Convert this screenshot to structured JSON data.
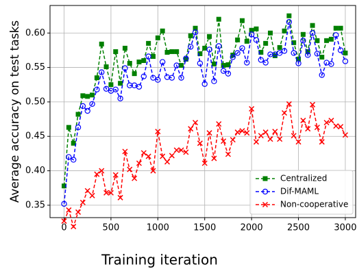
{
  "chart_data": {
    "type": "line",
    "xlabel": "Training iteration",
    "ylabel": "Average accuracy on test tasks",
    "x": [
      0,
      50,
      100,
      150,
      200,
      250,
      300,
      350,
      400,
      450,
      500,
      550,
      600,
      650,
      700,
      750,
      800,
      850,
      900,
      950,
      1000,
      1050,
      1100,
      1150,
      1200,
      1250,
      1300,
      1350,
      1400,
      1450,
      1500,
      1550,
      1600,
      1650,
      1700,
      1750,
      1800,
      1850,
      1900,
      1950,
      2000,
      2050,
      2100,
      2150,
      2200,
      2250,
      2300,
      2350,
      2400,
      2450,
      2500,
      2550,
      2600,
      2650,
      2700,
      2750,
      2800,
      2850,
      2900,
      2950,
      3000
    ],
    "series": [
      {
        "name": "Centralized",
        "color": "#008000",
        "marker": "square",
        "values": [
          0.378,
          0.463,
          0.44,
          0.482,
          0.509,
          0.508,
          0.51,
          0.535,
          0.584,
          0.551,
          0.525,
          0.573,
          0.527,
          0.578,
          0.556,
          0.541,
          0.558,
          0.56,
          0.585,
          0.566,
          0.593,
          0.603,
          0.572,
          0.573,
          0.573,
          0.553,
          0.562,
          0.596,
          0.607,
          0.57,
          0.578,
          0.595,
          0.555,
          0.62,
          0.553,
          0.554,
          0.568,
          0.59,
          0.618,
          0.588,
          0.604,
          0.606,
          0.572,
          0.585,
          0.6,
          0.567,
          0.579,
          0.603,
          0.625,
          0.586,
          0.562,
          0.598,
          0.573,
          0.611,
          0.589,
          0.565,
          0.589,
          0.591,
          0.607,
          0.607,
          0.571
        ]
      },
      {
        "name": "Dif-MAML",
        "color": "#0000ff",
        "marker": "circle",
        "values": [
          0.352,
          0.42,
          0.416,
          0.463,
          0.494,
          0.487,
          0.497,
          0.518,
          0.543,
          0.519,
          0.516,
          0.518,
          0.505,
          0.549,
          0.524,
          0.524,
          0.522,
          0.537,
          0.566,
          0.535,
          0.532,
          0.558,
          0.536,
          0.535,
          0.553,
          0.535,
          0.563,
          0.58,
          0.601,
          0.556,
          0.526,
          0.576,
          0.53,
          0.581,
          0.545,
          0.541,
          0.565,
          0.571,
          0.578,
          0.557,
          0.598,
          0.59,
          0.561,
          0.557,
          0.569,
          0.569,
          0.571,
          0.574,
          0.616,
          0.571,
          0.556,
          0.589,
          0.568,
          0.6,
          0.57,
          0.539,
          0.557,
          0.555,
          0.597,
          0.575,
          0.559
        ]
      },
      {
        "name": "Non-cooperative",
        "color": "#ff0000",
        "marker": "x",
        "values": [
          0.327,
          0.343,
          0.319,
          0.34,
          0.354,
          0.371,
          0.364,
          0.395,
          0.4,
          0.368,
          0.368,
          0.394,
          0.361,
          0.428,
          0.402,
          0.389,
          0.411,
          0.426,
          0.421,
          0.4,
          0.457,
          0.421,
          0.413,
          0.422,
          0.43,
          0.43,
          0.427,
          0.461,
          0.47,
          0.44,
          0.411,
          0.455,
          0.418,
          0.468,
          0.443,
          0.424,
          0.445,
          0.456,
          0.458,
          0.455,
          0.49,
          0.442,
          0.451,
          0.456,
          0.446,
          0.457,
          0.446,
          0.484,
          0.497,
          0.451,
          0.442,
          0.473,
          0.461,
          0.496,
          0.463,
          0.442,
          0.47,
          0.473,
          0.465,
          0.464,
          0.452
        ]
      }
    ],
    "xlim": [
      -150,
      3110
    ],
    "ylim": [
      0.332,
      0.64
    ],
    "xticks": [
      0,
      500,
      1000,
      1500,
      2000,
      2500,
      3000
    ],
    "yticks": [
      0.35,
      {
        "value": 0.4,
        "label": "0.40"
      },
      0.45,
      {
        "value": 0.5,
        "label": "0.50"
      },
      0.55,
      {
        "value": 0.6,
        "label": "0.60"
      }
    ],
    "grid": true,
    "legend": "lower right"
  }
}
